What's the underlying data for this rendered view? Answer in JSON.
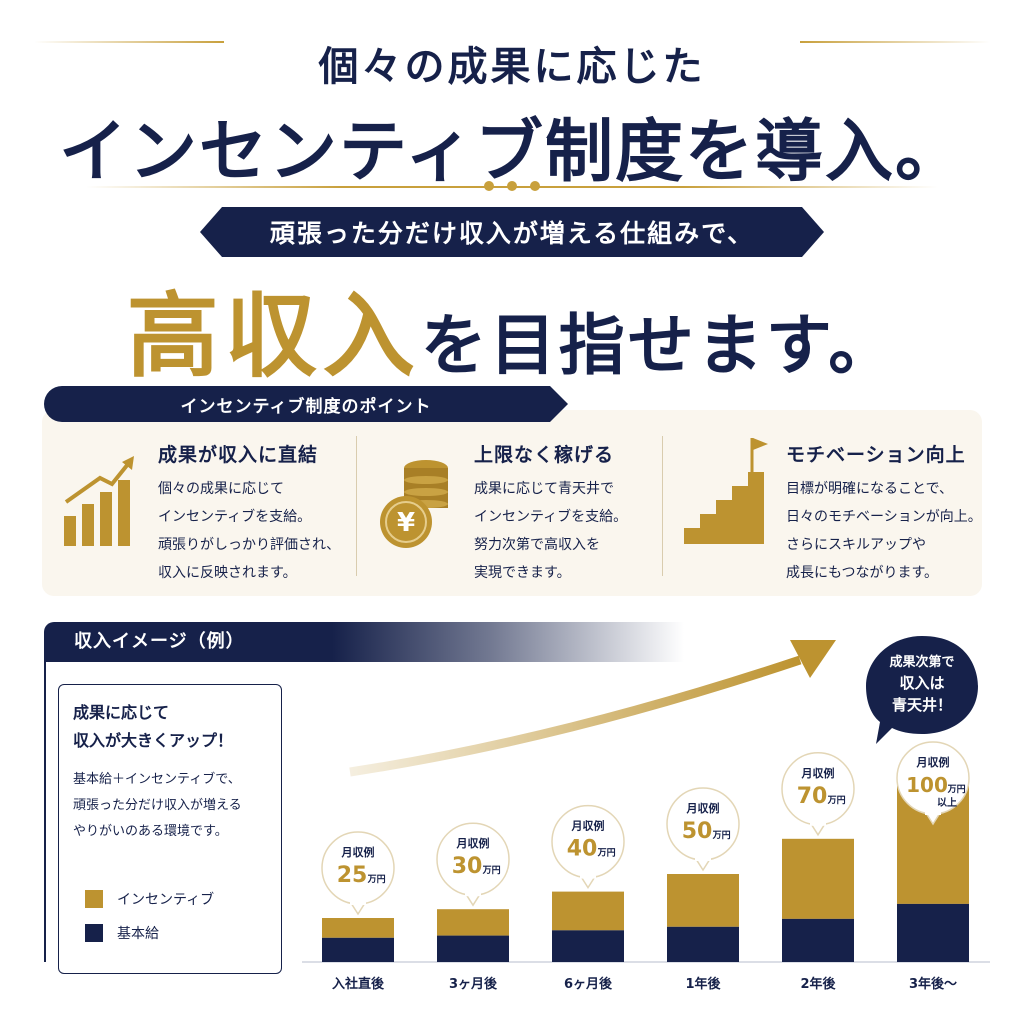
{
  "header": {
    "line1": "個々の成果に応じた",
    "line2": "インセンティブ制度を導入。",
    "ribbon": "頑張った分だけ収入が増える仕組みで、",
    "goal_gold": "高収入",
    "goal_navy": "を目指せます。"
  },
  "points": {
    "tab_label": "インセンティブ制度のポイント",
    "items": [
      {
        "title": "成果が収入に直結",
        "lines": [
          "個々の成果に応じて",
          "インセンティブを支給。",
          "頑張りがしっかり評価され、",
          "収入に反映されます。"
        ],
        "icon": "growth-bar-chart-icon"
      },
      {
        "title": "上限なく稼げる",
        "lines": [
          "成果に応じて青天井で",
          "インセンティブを支給。",
          "努力次第で高収入を",
          "実現できます。"
        ],
        "icon": "yen-coin-stack-icon"
      },
      {
        "title": "モチベーション向上",
        "lines": [
          "目標が明確になることで、",
          "日々のモチベーションが向上。",
          "さらにスキルアップや",
          "成長にもつながります。"
        ],
        "icon": "stairs-flag-icon"
      }
    ]
  },
  "income": {
    "header": "収入イメージ（例）",
    "card_title": [
      "成果に応じて",
      "収入が大きくアップ！"
    ],
    "card_text": [
      "基本給＋インセンティブで、",
      "頑張った分だけ収入が増える",
      "やりがいのある環境です。"
    ],
    "callout": [
      "成果次第で",
      "収入は",
      "青天井！"
    ],
    "bubble_label": "月収例",
    "unit": "万円",
    "last_suffix": "以上"
  },
  "colors": {
    "navy": "#16214a",
    "gold": "#bd9330",
    "panel": "#faf6ee"
  },
  "chart_data": {
    "type": "bar",
    "stacked": true,
    "categories": [
      "入社直後",
      "3ヶ月後",
      "6ヶ月後",
      "1年後",
      "2年後",
      "3年後〜"
    ],
    "series": [
      {
        "name": "インセンティブ",
        "color": "#bd9330"
      },
      {
        "name": "基本給",
        "color": "#16214a"
      }
    ],
    "totals": [
      25,
      30,
      40,
      50,
      70,
      100
    ],
    "total_labels": [
      "25",
      "30",
      "40",
      "50",
      "70",
      "100"
    ],
    "base_fraction": [
      0.55,
      0.5,
      0.45,
      0.4,
      0.35,
      0.33
    ],
    "legend": "bottom-left",
    "grid": false
  }
}
